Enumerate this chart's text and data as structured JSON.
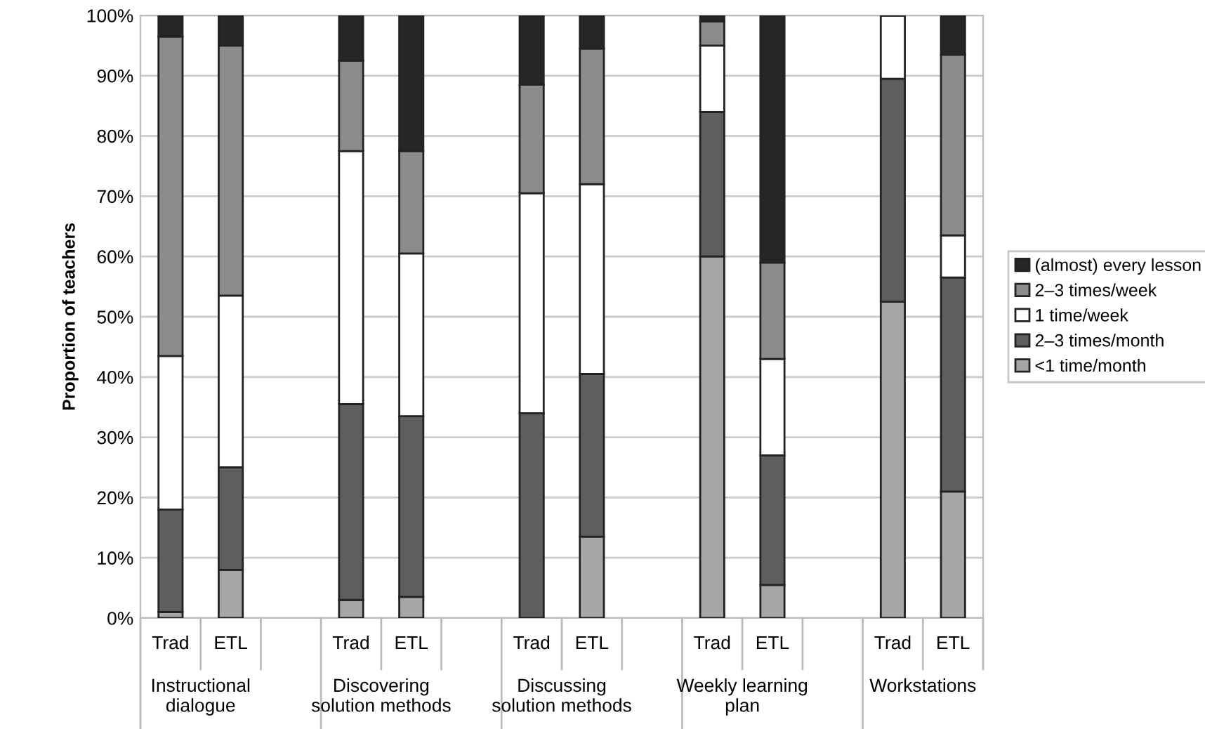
{
  "chart_data": {
    "type": "bar",
    "stacked": true,
    "categories": [
      "Trad",
      "ETL",
      null,
      "Trad",
      "ETL",
      null,
      "Trad",
      "ETL",
      null,
      "Trad",
      "ETL",
      null,
      "Trad",
      "ETL"
    ],
    "annotations": [
      "Instructional\ndialogue",
      "Discovering\nsolution methods",
      "Discussing\nsolution methods",
      "Weekly learning\nplan",
      "Workstations"
    ],
    "ylabel": "Proportion of teachers",
    "ylim": [
      0,
      100
    ],
    "yticks": [
      {
        "value": 0,
        "label": "0%"
      },
      {
        "value": 10,
        "label": "10%"
      },
      {
        "value": 20,
        "label": "20%"
      },
      {
        "value": 30,
        "label": "30%"
      },
      {
        "value": 40,
        "label": "40%"
      },
      {
        "value": 50,
        "label": "50%"
      },
      {
        "value": 60,
        "label": "60%"
      },
      {
        "value": 70,
        "label": "70%"
      },
      {
        "value": 80,
        "label": "80%"
      },
      {
        "value": 90,
        "label": "90%"
      },
      {
        "value": 100,
        "label": "100%"
      }
    ],
    "grid": "y",
    "legend": "right",
    "series": [
      {
        "name": "<1 time/month",
        "color": "#a6a6a6",
        "values": [
          1,
          8,
          null,
          3,
          3.5,
          null,
          0,
          13.5,
          null,
          60,
          5.5,
          null,
          52.5,
          21
        ]
      },
      {
        "name": "2–3 times/month",
        "color": "#5e5e5e",
        "values": [
          17,
          17,
          null,
          32.5,
          30,
          null,
          34,
          27,
          null,
          24,
          21.5,
          null,
          37,
          35.5
        ]
      },
      {
        "name": "1 time/week",
        "color": "#ffffff",
        "values": [
          25.5,
          28.5,
          null,
          42,
          27,
          null,
          36.5,
          31.5,
          null,
          11,
          16,
          null,
          10.5,
          7
        ]
      },
      {
        "name": "2–3 times/week",
        "color": "#8c8c8c",
        "values": [
          53,
          41.5,
          null,
          15,
          17,
          null,
          18,
          22.5,
          null,
          4,
          16,
          null,
          0,
          30
        ]
      },
      {
        "name": "(almost) every lesson",
        "color": "#262626",
        "values": [
          3.5,
          5,
          null,
          7.5,
          22.5,
          null,
          11.5,
          5.5,
          null,
          1,
          41,
          null,
          0,
          6.5
        ]
      }
    ]
  }
}
